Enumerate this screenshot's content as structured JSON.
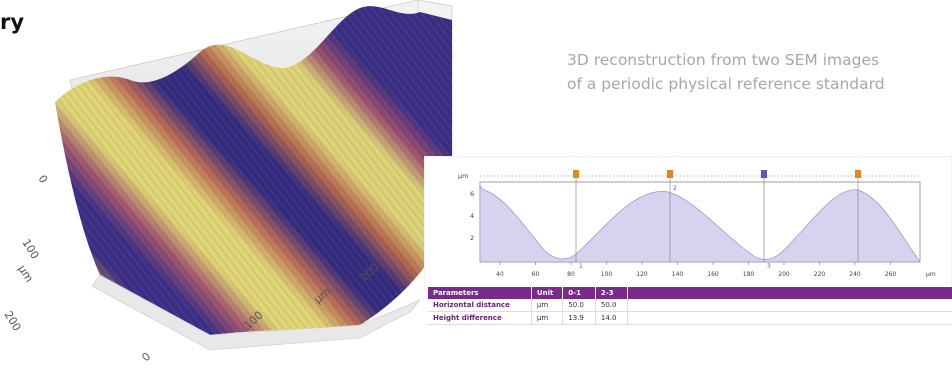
{
  "title_fragment": "ry",
  "caption": {
    "line1": "3D reconstruction from two SEM images",
    "line2": "of a periodic physical reference standard"
  },
  "surface3d": {
    "x_ticks": [
      "0",
      "100",
      "200"
    ],
    "x_unit": "μm",
    "y_ticks": [
      "0",
      "100",
      "200"
    ],
    "y_unit": "μm"
  },
  "profile": {
    "y_unit": "μm",
    "y_ticks": [
      "6",
      "4",
      "2"
    ],
    "x_ticks": [
      "40",
      "60",
      "80",
      "100",
      "120",
      "140",
      "160",
      "180",
      "200",
      "220",
      "240",
      "260"
    ],
    "x_unit": "μm",
    "cursors": [
      "1",
      "2",
      "3"
    ],
    "marker_colors": [
      "#e08a1e",
      "#e08a1e",
      "#5b5bb0",
      "#e08a1e"
    ]
  },
  "params_table": {
    "headers": [
      "Parameters",
      "Unit",
      "0-1",
      "2-3"
    ],
    "rows": [
      [
        "Horizontal distance",
        "µm",
        "50.0",
        "50.0"
      ],
      [
        "Height difference",
        "µm",
        "13.9",
        "14.0"
      ]
    ]
  },
  "colors": {
    "accent": "#7a2a8c",
    "profile_fill": "#d9d2ee",
    "ridge": "#cfc96a",
    "trough": "#3d2f86"
  }
}
